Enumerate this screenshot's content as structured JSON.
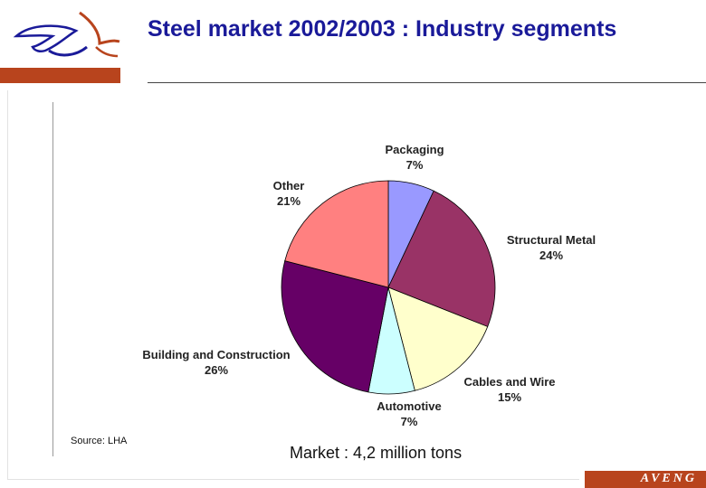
{
  "slide": {
    "title": "Steel market 2002/2003 : Industry segments",
    "source": "Source: LHA",
    "market_note": "Market : 4,2 million tons",
    "brand": "AVENG"
  },
  "colors": {
    "title": "#1a1a99",
    "accent_bar": "#b8441d"
  },
  "chart_data": {
    "type": "pie",
    "title": "",
    "slices": [
      {
        "name": "Packaging",
        "value": 7,
        "label": "7%",
        "color": "#9999ff"
      },
      {
        "name": "Structural Metal",
        "value": 24,
        "label": "24%",
        "color": "#993366"
      },
      {
        "name": "Cables and Wire",
        "value": 15,
        "label": "15%",
        "color": "#ffffcc"
      },
      {
        "name": "Automotive",
        "value": 7,
        "label": "7%",
        "color": "#ccffff"
      },
      {
        "name": "Building and Construction",
        "value": 26,
        "label": "26%",
        "color": "#660066"
      },
      {
        "name": "Other",
        "value": 21,
        "label": "21%",
        "color": "#ff8080"
      }
    ],
    "start": "top",
    "direction": "clockwise",
    "legend": "none"
  }
}
